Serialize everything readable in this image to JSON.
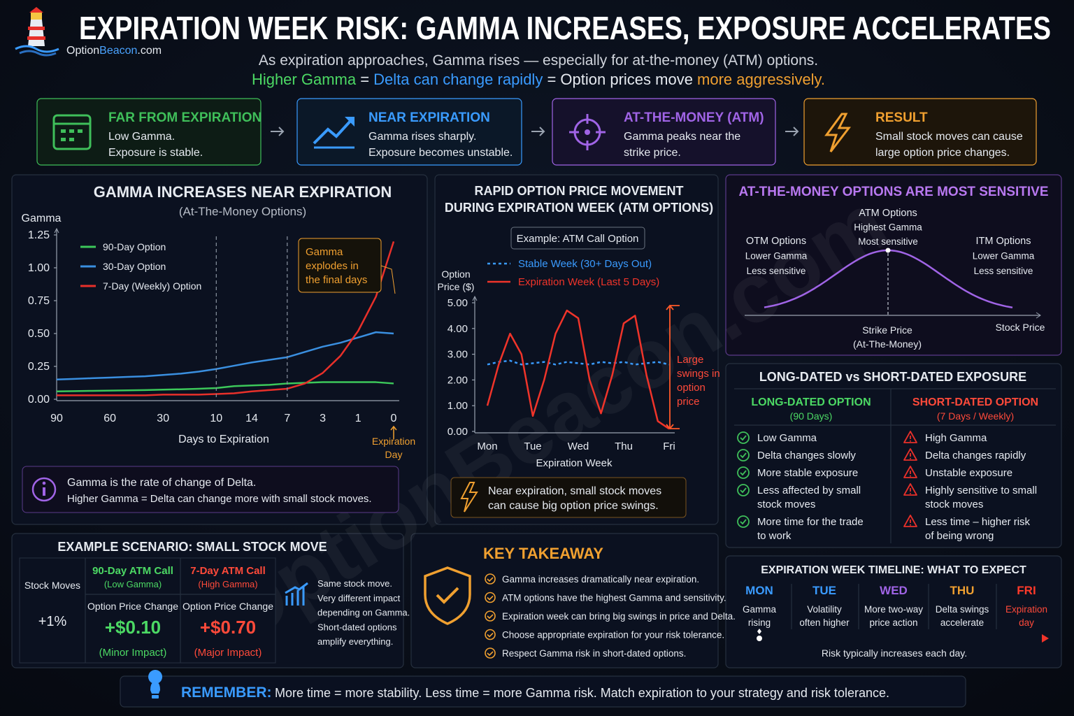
{
  "header": {
    "title": "EXPIRATION WEEK RISK: GAMMA INCREASES, EXPOSURE ACCELERATES",
    "brand": [
      "Option",
      "Beacon",
      ".com"
    ],
    "subtitle": "As expiration approaches, Gamma rises — especially for at-the-money (ATM) options.",
    "formula": [
      "Higher Gamma",
      " = ",
      "Delta can change rapidly",
      " = Option prices move ",
      "more aggressively."
    ]
  },
  "watermark": "OptionBeacon.com",
  "steps": [
    {
      "title": "FAR FROM EXPIRATION",
      "lines": [
        "Low Gamma.",
        "Exposure is stable."
      ]
    },
    {
      "title": "NEAR EXPIRATION",
      "lines": [
        "Gamma rises sharply.",
        "Exposure becomes unstable."
      ]
    },
    {
      "title": "AT-THE-MONEY (ATM)",
      "lines": [
        "Gamma peaks near the",
        "strike price."
      ]
    },
    {
      "title": "RESULT",
      "lines": [
        "Small stock moves can cause",
        "large option price changes."
      ]
    }
  ],
  "chart_data": [
    {
      "type": "line",
      "title": "GAMMA INCREASES NEAR EXPIRATION",
      "subtitle": "(At-The-Money Options)",
      "y_label": "Gamma",
      "x_label": "Days to Expiration",
      "categories": [
        "90",
        null,
        null,
        "60",
        null,
        null,
        "30",
        null,
        null,
        "10",
        null,
        "14",
        null,
        "7",
        null,
        "3",
        null,
        "1",
        null,
        "0"
      ],
      "series": [
        {
          "name": "90-Day Option",
          "color": "#3cc85a",
          "values": [
            0.06,
            0.062,
            0.064,
            0.066,
            0.068,
            0.07,
            0.073,
            0.076,
            0.08,
            0.085,
            0.1,
            0.105,
            0.11,
            0.12,
            0.125,
            0.13,
            0.13,
            0.13,
            0.13,
            0.12
          ]
        },
        {
          "name": "30-Day Option",
          "color": "#3a8fe0",
          "values": [
            0.15,
            0.155,
            0.16,
            0.165,
            0.17,
            0.175,
            0.185,
            0.195,
            0.21,
            0.23,
            0.255,
            0.28,
            0.3,
            0.32,
            0.36,
            0.4,
            0.43,
            0.47,
            0.51,
            0.5
          ]
        },
        {
          "name": "7-Day (Weekly) Option",
          "color": "#e8302a",
          "values": [
            0.03,
            0.03,
            0.03,
            0.03,
            0.03,
            0.03,
            0.035,
            0.035,
            0.035,
            0.04,
            0.045,
            0.06,
            0.07,
            0.08,
            0.12,
            0.2,
            0.33,
            0.52,
            0.78,
            1.2
          ]
        }
      ],
      "ylim": [
        0,
        1.25
      ],
      "yticks": [
        {
          "value": 0,
          "label": "0.00"
        },
        0.25,
        {
          "value": 0.5,
          "label": "0.50"
        },
        0.75,
        {
          "value": 1,
          "label": "1.00"
        },
        1.25
      ],
      "annotation": [
        "Gamma",
        "explodes in",
        "the final days"
      ],
      "end_label": [
        "Expiration",
        "Day"
      ]
    },
    {
      "type": "line",
      "title": [
        "RAPID OPTION PRICE MOVEMENT",
        "DURING EXPIRATION WEEK (ATM OPTIONS)"
      ],
      "example": "Example: ATM Call Option",
      "y_label": [
        "Option",
        "Price ($)"
      ],
      "x_label": "Expiration Week",
      "categories": [
        "Mon",
        null,
        null,
        null,
        "Tue",
        null,
        null,
        null,
        "Wed",
        null,
        null,
        null,
        "Thu",
        null,
        null,
        null,
        "Fri"
      ],
      "series": [
        {
          "name": "Stable Week (30+ Days Out)",
          "color": "#3a9bff",
          "dashed": true,
          "values": [
            2.6,
            2.7,
            2.75,
            2.6,
            2.65,
            2.7,
            2.6,
            2.7,
            2.65,
            2.6,
            2.7,
            2.65,
            2.7,
            2.6,
            2.65,
            2.7,
            2.6
          ]
        },
        {
          "name": "Expiration Week (Last 5 Days)",
          "color": "#f0342a",
          "values": [
            1.0,
            2.6,
            3.8,
            3.0,
            0.6,
            2.0,
            3.8,
            4.7,
            4.4,
            2.0,
            0.7,
            2.2,
            4.2,
            4.5,
            2.2,
            0.4,
            0.1
          ]
        }
      ],
      "ylim": [
        0,
        5
      ],
      "yticks": [
        {
          "value": 0,
          "label": "0.00"
        },
        {
          "value": 1,
          "label": "1.00"
        },
        {
          "value": 2,
          "label": "2.00"
        },
        {
          "value": 3,
          "label": "3.00"
        },
        {
          "value": 4,
          "label": "4.00"
        },
        {
          "value": 5,
          "label": "5.00"
        }
      ],
      "annotation": [
        "Large",
        "swings in",
        "option",
        "price"
      ]
    }
  ],
  "gamma_note": [
    "Gamma is the rate of change of Delta.",
    "Higher Gamma = Delta can change more with small stock moves."
  ],
  "price_note": [
    "Near expiration, small stock moves",
    "can cause big option price swings."
  ],
  "atm": {
    "title": "AT-THE-MONEY OPTIONS ARE MOST SENSITIVE",
    "peak": [
      "ATM Options",
      "Highest Gamma",
      "Most sensitive"
    ],
    "otm": [
      "OTM Options",
      "Lower Gamma",
      "Less sensitive"
    ],
    "itm": [
      "ITM Options",
      "Lower Gamma",
      "Less sensitive"
    ],
    "strike": [
      "Strike Price",
      "(At-The-Money)"
    ],
    "axis": "Stock Price"
  },
  "exposure": {
    "title": "LONG-DATED vs SHORT-DATED EXPOSURE",
    "long": {
      "title": "LONG-DATED OPTION",
      "sub": "(90 Days)",
      "items": [
        [
          "Low Gamma"
        ],
        [
          "Delta changes slowly"
        ],
        [
          "More stable exposure"
        ],
        [
          "Less affected by small",
          "stock moves"
        ],
        [
          "More time for the trade",
          "to work"
        ]
      ]
    },
    "short": {
      "title": "SHORT-DATED OPTION",
      "sub": "(7 Days / Weekly)",
      "items": [
        [
          "High Gamma"
        ],
        [
          "Delta changes rapidly"
        ],
        [
          "Unstable exposure"
        ],
        [
          "Highly sensitive to small",
          "stock moves"
        ],
        [
          "Less time – higher risk",
          "of being wrong"
        ]
      ]
    }
  },
  "scenario": {
    "title": "EXAMPLE SCENARIO: SMALL STOCK MOVE",
    "stock_header": "Stock Moves",
    "move": "+1%",
    "columns": [
      {
        "title": "90-Day ATM Call",
        "sub": "(Low Gamma)",
        "head": "Option Price Change",
        "value": "+$0.10",
        "impact": "(Minor Impact)"
      },
      {
        "title": "7-Day ATM Call",
        "sub": "(High Gamma)",
        "head": "Option Price Change",
        "value": "+$0.70",
        "impact": "(Major Impact)"
      }
    ],
    "note": [
      "Same stock move.",
      "Very different impact",
      "depending on Gamma.",
      "Short-dated options",
      "amplify everything."
    ]
  },
  "takeaway": {
    "title": "KEY TAKEAWAY",
    "items": [
      "Gamma increases dramatically near expiration.",
      "ATM options have the highest Gamma and sensitivity.",
      "Expiration week can bring big swings in price and Delta.",
      "Choose appropriate expiration for your risk tolerance.",
      "Respect Gamma risk in short-dated options."
    ]
  },
  "timeline": {
    "title": "EXPIRATION WEEK TIMELINE: WHAT TO EXPECT",
    "days": [
      {
        "day": "MON",
        "lines": [
          "Gamma",
          "rising"
        ]
      },
      {
        "day": "TUE",
        "lines": [
          "Volatility",
          "often higher"
        ]
      },
      {
        "day": "WED",
        "lines": [
          "More two-way",
          "price action"
        ]
      },
      {
        "day": "THU",
        "lines": [
          "Delta swings",
          "accelerate"
        ]
      },
      {
        "day": "FRI",
        "lines": [
          "Expiration",
          "day"
        ]
      }
    ],
    "footer": "Risk typically increases each day."
  },
  "remember": {
    "label": "REMEMBER:",
    "text": "More time = more stability. Less time = more Gamma risk. Match expiration to your strategy and risk tolerance."
  }
}
